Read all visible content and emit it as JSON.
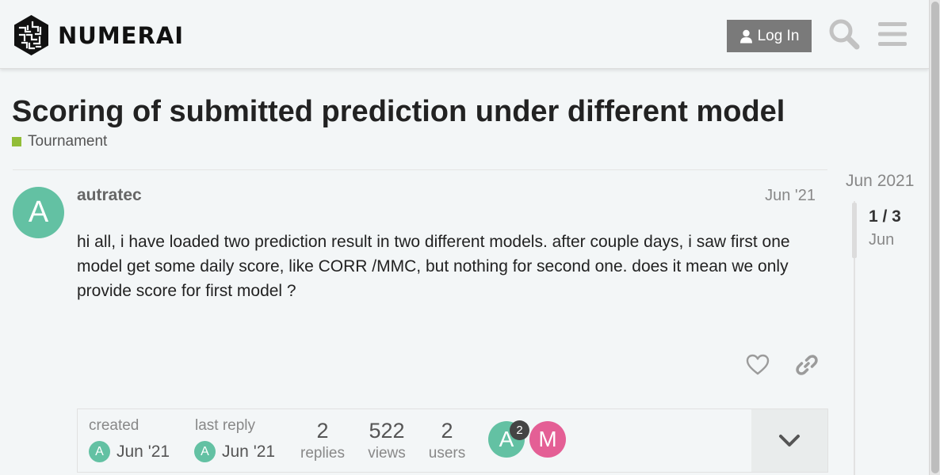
{
  "header": {
    "brand_name": "NUMERAI",
    "login_label": "Log In",
    "icons": {
      "logo": "numerai-logo-mark",
      "user": "user-icon",
      "search": "search-icon",
      "menu": "hamburger-menu-icon"
    }
  },
  "topic": {
    "title": "Scoring of submitted prediction under different model",
    "category": {
      "name": "Tournament",
      "color": "#92bd38"
    }
  },
  "post": {
    "avatar_letter": "A",
    "avatar_color": "#63c1a3",
    "username": "autratec",
    "date": "Jun '21",
    "body": "hi all, i have loaded two prediction result in two different models. after couple days, i saw first one model get some daily score, like CORR /MMC, but nothing for second one. does it mean we only provide score for first model ?",
    "icons": {
      "like": "heart-icon",
      "share": "link-icon"
    }
  },
  "topic_map": {
    "created_label": "created",
    "created_avatar_letter": "A",
    "created_date": "Jun '21",
    "last_reply_label": "last reply",
    "last_reply_avatar_letter": "A",
    "last_reply_date": "Jun '21",
    "replies_count": "2",
    "replies_label": "replies",
    "views_count": "522",
    "views_label": "views",
    "users_count": "2",
    "users_label": "users",
    "participants": [
      {
        "letter": "A",
        "color": "#63c1a3",
        "post_count": "2"
      },
      {
        "letter": "M",
        "color": "#e45f95"
      }
    ],
    "toggle_icon": "chevron-down-icon"
  },
  "timeline": {
    "start_date": "Jun 2021",
    "position": "1 / 3",
    "month": "Jun"
  }
}
